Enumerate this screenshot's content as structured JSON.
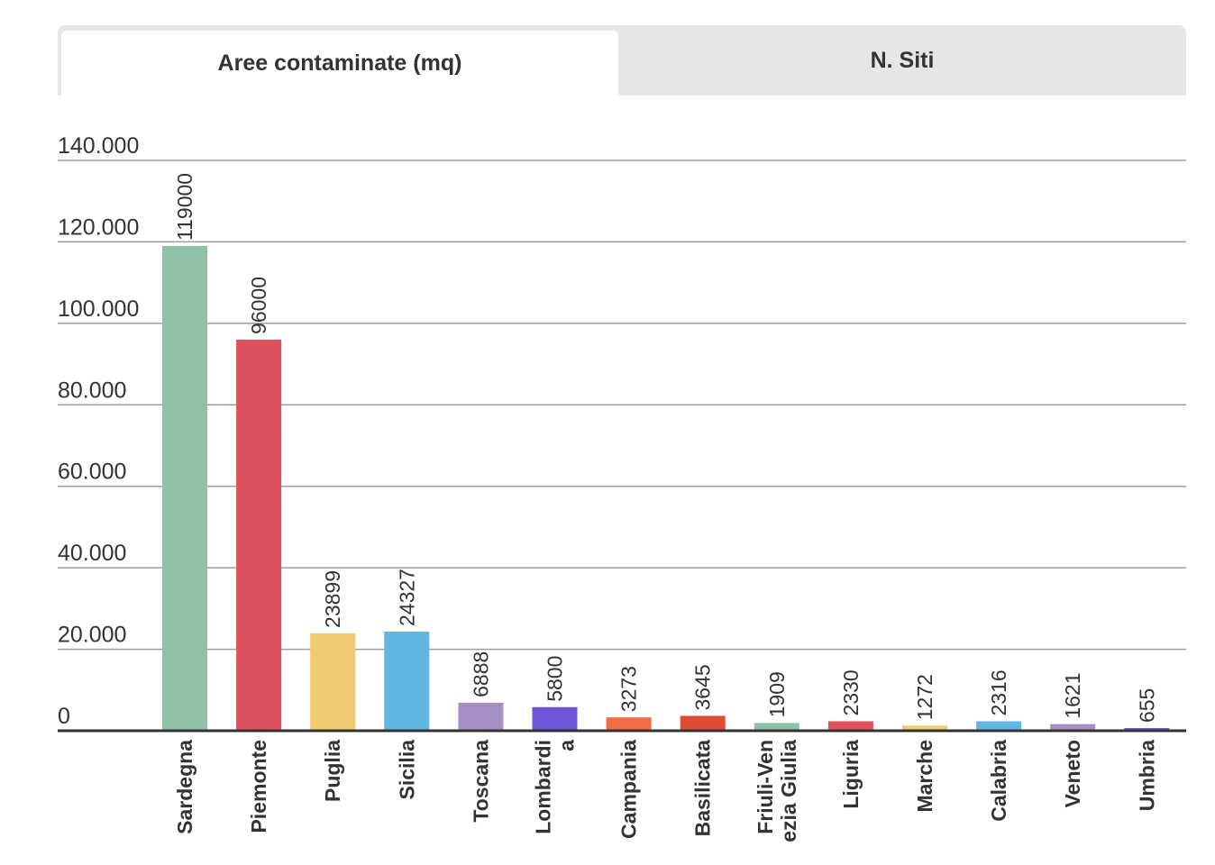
{
  "tabs": [
    {
      "label": "Aree contaminate (mq)",
      "active": true
    },
    {
      "label": "N. Siti",
      "active": false
    }
  ],
  "chart_data": {
    "type": "bar",
    "title": "",
    "xlabel": "",
    "ylabel": "",
    "ylim": [
      0,
      140000
    ],
    "grid": true,
    "y_ticks": [
      {
        "value": 0,
        "label": "0"
      },
      {
        "value": 20000,
        "label": "20.000"
      },
      {
        "value": 40000,
        "label": "40.000"
      },
      {
        "value": 60000,
        "label": "60.000"
      },
      {
        "value": 80000,
        "label": "80.000"
      },
      {
        "value": 100000,
        "label": "100.000"
      },
      {
        "value": 120000,
        "label": "120.000"
      },
      {
        "value": 140000,
        "label": "140.000"
      }
    ],
    "categories": [
      [
        "Sardegna"
      ],
      [
        "Piemonte"
      ],
      [
        "Puglia"
      ],
      [
        "Sicilia"
      ],
      [
        "Toscana"
      ],
      [
        "Lombardi",
        "a"
      ],
      [
        "Campania"
      ],
      [
        "Basilicata"
      ],
      [
        "Friuli-Ven",
        "ezia Giulia"
      ],
      [
        "Liguria"
      ],
      [
        "Marche"
      ],
      [
        "Calabria"
      ],
      [
        "Veneto"
      ],
      [
        "Umbria"
      ]
    ],
    "values": [
      119000,
      96000,
      23899,
      24327,
      6888,
      5800,
      3273,
      3645,
      1909,
      2330,
      1272,
      2316,
      1621,
      655
    ],
    "data_labels": [
      "119000",
      "96000",
      "23899",
      "24327",
      "6888",
      "5800",
      "3273",
      "3645",
      "1909",
      "2330",
      "1272",
      "2316",
      "1621",
      "655"
    ],
    "colors": [
      "#8fc1a7",
      "#dd525d",
      "#f0cb6f",
      "#62b6e2",
      "#a78fc6",
      "#6e55d9",
      "#f36c45",
      "#df4b32",
      "#8fc1a7",
      "#dd525d",
      "#f0cb6f",
      "#62b6e2",
      "#a78fc6",
      "#6e55d9"
    ]
  }
}
